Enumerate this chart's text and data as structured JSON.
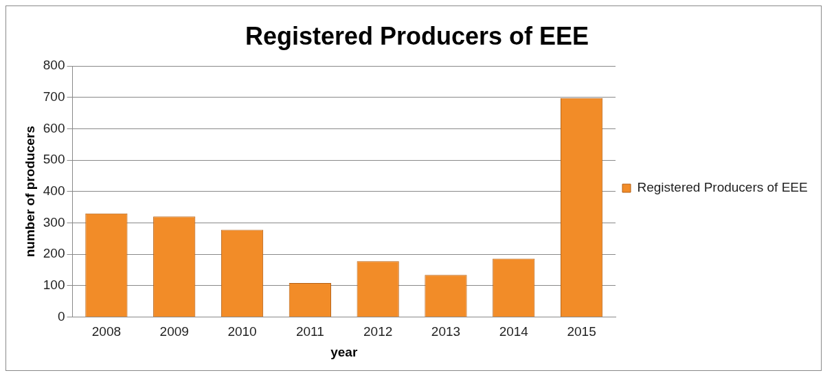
{
  "chart_data": {
    "type": "bar",
    "title": "Registered Producers of EEE",
    "xlabel": "year",
    "ylabel": "number of producers",
    "categories": [
      "2008",
      "2009",
      "2010",
      "2011",
      "2012",
      "2013",
      "2014",
      "2015"
    ],
    "series": [
      {
        "name": "Registered Producers of EEE",
        "color": "#f28c28",
        "values": [
          330,
          320,
          278,
          108,
          178,
          134,
          186,
          698
        ]
      }
    ],
    "ylim": [
      0,
      800
    ],
    "yticks": [
      0,
      100,
      200,
      300,
      400,
      500,
      600,
      700,
      800
    ],
    "grid": "y",
    "legend": "right"
  }
}
